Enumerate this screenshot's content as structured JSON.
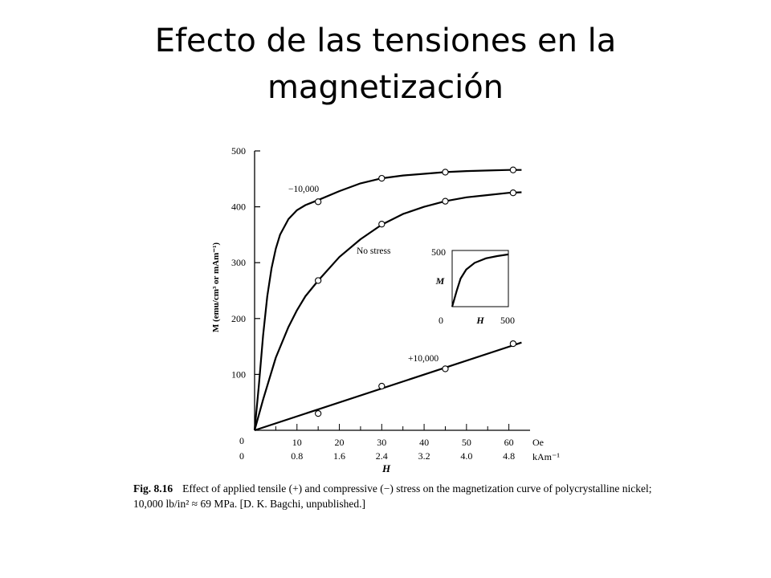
{
  "slide": {
    "title_line1": "Efecto de las tensiones en la",
    "title_line2": "magnetización"
  },
  "figure": {
    "caption_label": "Fig. 8.16",
    "caption_text": "Effect of applied tensile (+) and compressive (−) stress on the magnetization curve of polycrystalline nickel; 10,000 lb/in² ≈ 69 MPa. [D. K. Bagchi, unpublished.]"
  },
  "chart_data": {
    "type": "line",
    "title": "",
    "xlabel": "H",
    "ylabel": "M (emu/cm³ or mAm⁻¹)",
    "x_unit_primary": "Oe",
    "x_unit_secondary": "kAm⁻¹",
    "xlim": [
      0,
      65
    ],
    "ylim": [
      0,
      500
    ],
    "x_ticks": [
      0,
      10,
      20,
      30,
      40,
      50,
      60
    ],
    "x_ticks_secondary": [
      "0",
      "0.8",
      "1.6",
      "2.4",
      "3.2",
      "4.0",
      "4.8"
    ],
    "y_ticks": [
      100,
      200,
      300,
      400,
      500
    ],
    "y_zero_label": "0",
    "grid": false,
    "series": [
      {
        "name": "−10,000",
        "curve": [
          [
            0,
            0
          ],
          [
            1,
            80
          ],
          [
            2,
            170
          ],
          [
            3,
            240
          ],
          [
            4,
            290
          ],
          [
            5,
            325
          ],
          [
            6,
            350
          ],
          [
            8,
            378
          ],
          [
            10,
            394
          ],
          [
            12,
            403
          ],
          [
            15,
            412
          ],
          [
            20,
            428
          ],
          [
            25,
            442
          ],
          [
            30,
            451
          ],
          [
            35,
            456
          ],
          [
            40,
            459
          ],
          [
            45,
            462
          ],
          [
            50,
            464
          ],
          [
            55,
            465
          ],
          [
            60,
            466
          ],
          [
            63,
            466
          ]
        ],
        "points": [
          [
            15,
            409
          ],
          [
            30,
            451
          ],
          [
            45,
            462
          ],
          [
            61,
            466
          ]
        ]
      },
      {
        "name": "No stress",
        "curve": [
          [
            0,
            0
          ],
          [
            2,
            55
          ],
          [
            5,
            130
          ],
          [
            8,
            185
          ],
          [
            10,
            215
          ],
          [
            12,
            240
          ],
          [
            15,
            268
          ],
          [
            20,
            310
          ],
          [
            25,
            342
          ],
          [
            30,
            368
          ],
          [
            35,
            387
          ],
          [
            40,
            400
          ],
          [
            45,
            410
          ],
          [
            50,
            417
          ],
          [
            55,
            421
          ],
          [
            60,
            425
          ],
          [
            63,
            426
          ]
        ],
        "points": [
          [
            15,
            268
          ],
          [
            30,
            369
          ],
          [
            45,
            410
          ],
          [
            61,
            425
          ]
        ]
      },
      {
        "name": "+10,000",
        "curve": [
          [
            0,
            0
          ],
          [
            63,
            157
          ]
        ],
        "points": [
          [
            15,
            30
          ],
          [
            30,
            79
          ],
          [
            45,
            110
          ],
          [
            61,
            155
          ]
        ]
      }
    ],
    "inset": {
      "ylabel": "M",
      "xlabel": "H",
      "y_max_label": "500",
      "x_min_label": "0",
      "x_max_label": "500",
      "curve": [
        [
          0,
          0
        ],
        [
          0.08,
          0.28
        ],
        [
          0.15,
          0.5
        ],
        [
          0.25,
          0.66
        ],
        [
          0.4,
          0.78
        ],
        [
          0.6,
          0.86
        ],
        [
          0.8,
          0.9
        ],
        [
          1,
          0.93
        ]
      ]
    }
  }
}
